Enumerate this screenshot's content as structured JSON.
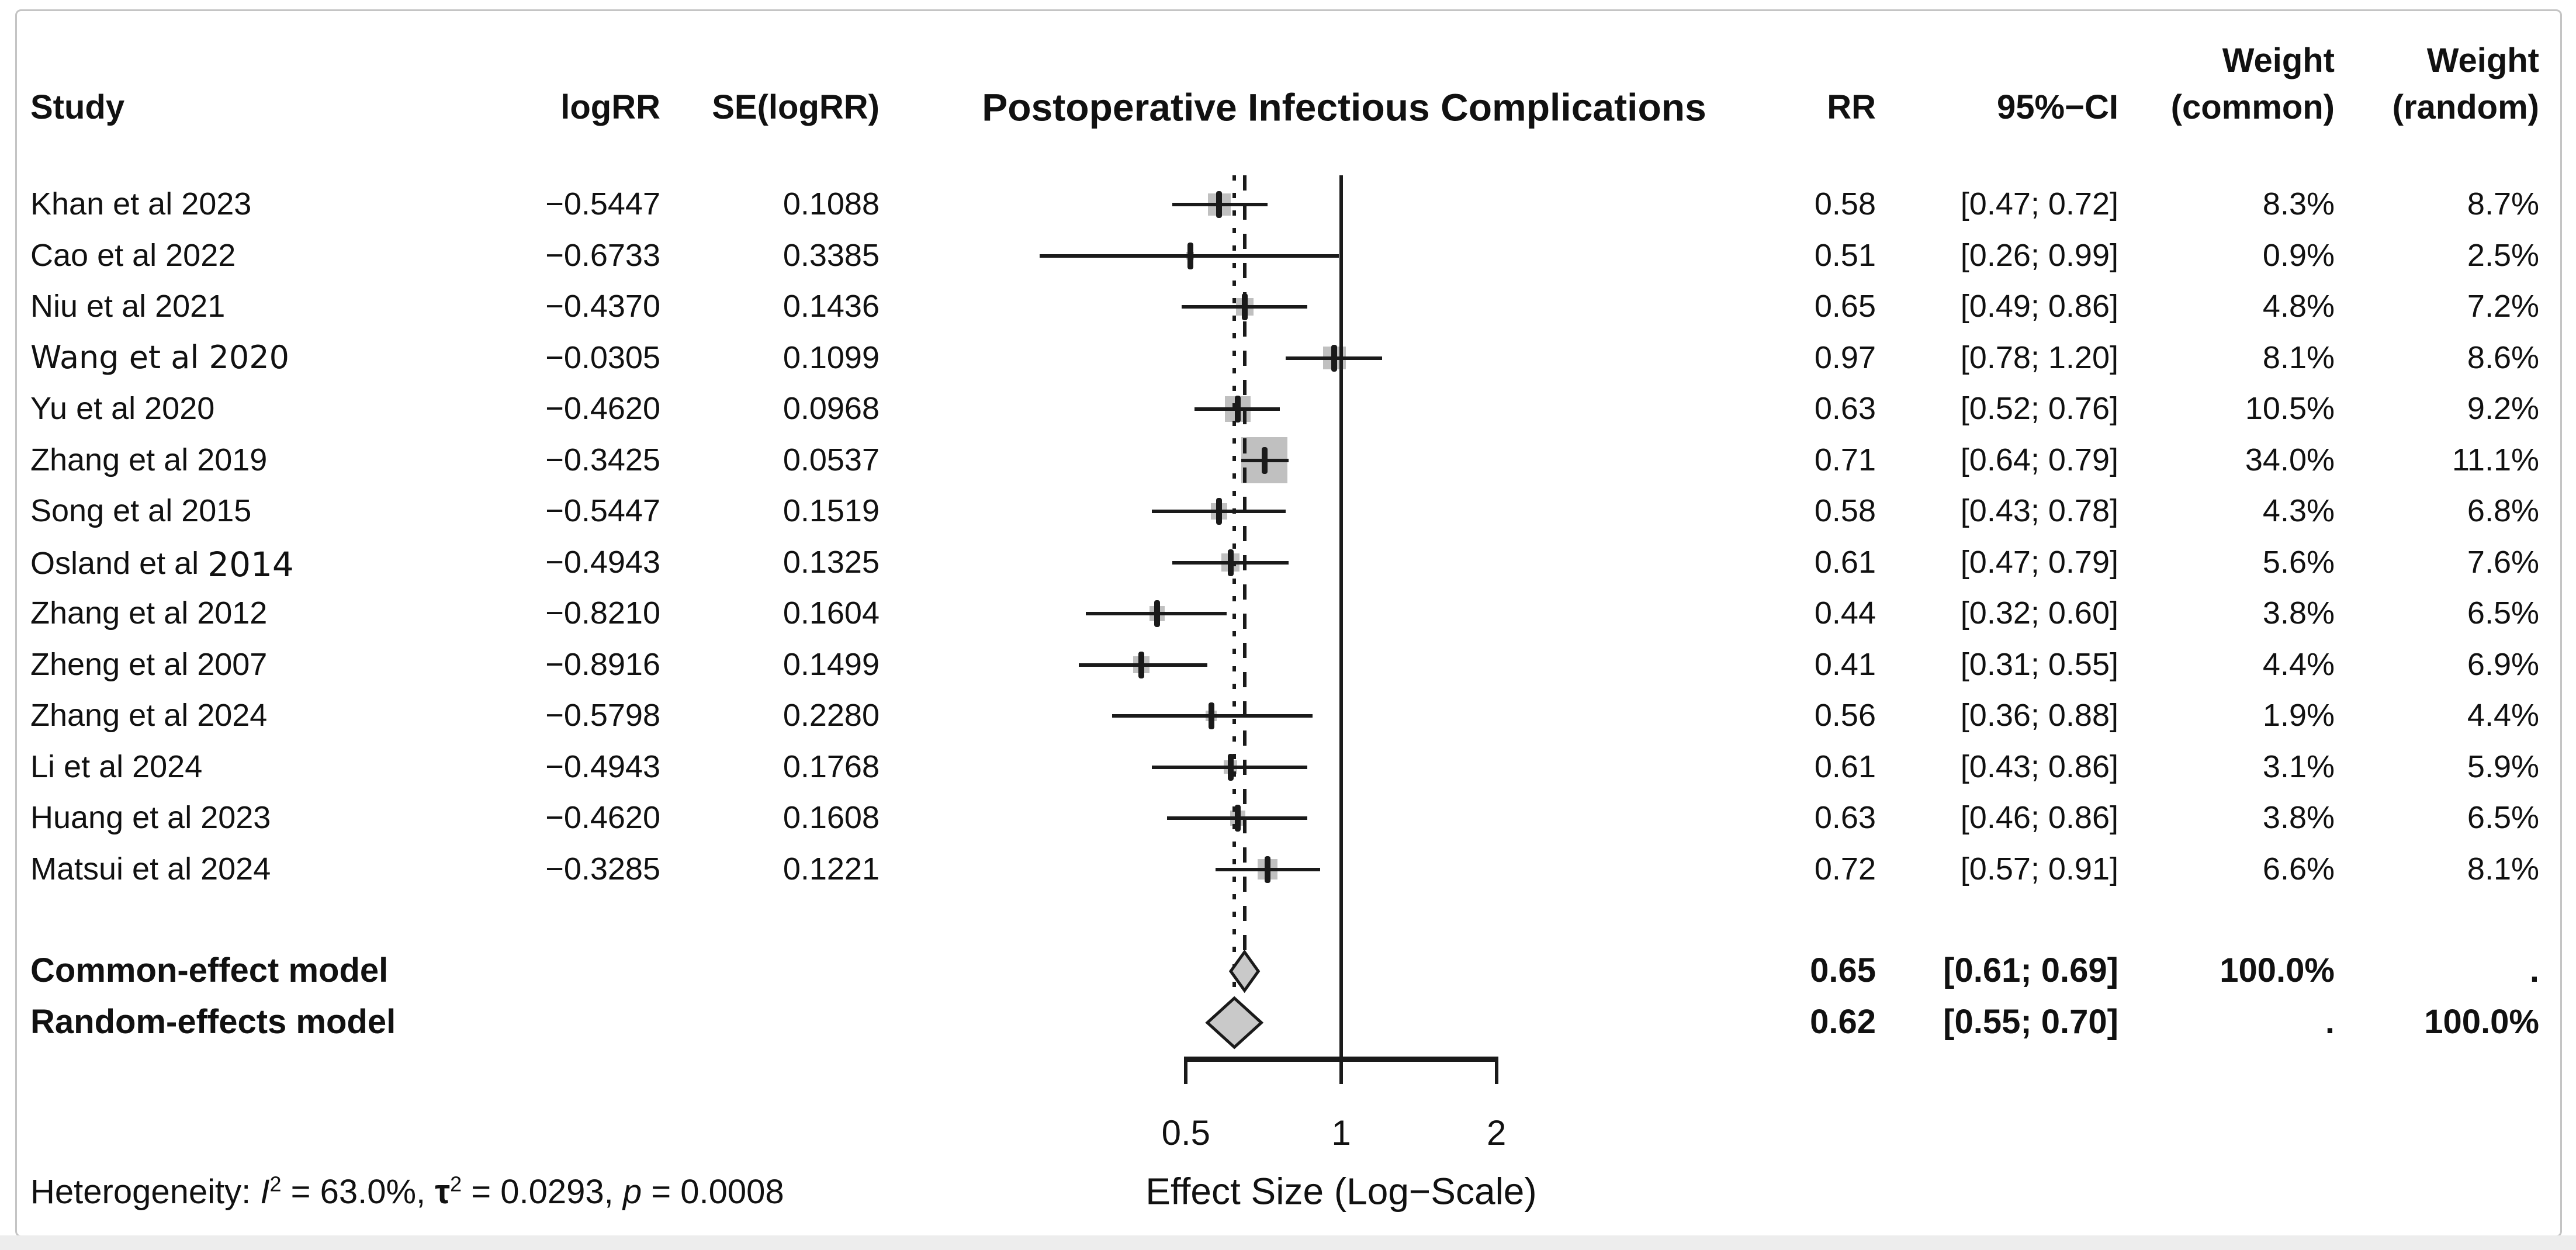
{
  "columns": {
    "study": "Study",
    "logrr": "logRR",
    "se": "SE(logRR)",
    "plot_title": "Postoperative Infectious Complications",
    "rr": "RR",
    "ci": "95%−CI",
    "weight": "Weight",
    "weight2": "Weight",
    "common": "(common)",
    "random": "(random)"
  },
  "chart_data": {
    "type": "scatter",
    "subtype": "forest-plot",
    "title": "Postoperative Infectious Complications",
    "xlabel": "Effect Size (Log−Scale)",
    "x_scale": "log",
    "x_ticks": [
      {
        "value": 0.5,
        "label": "0.5"
      },
      {
        "value": 1,
        "label": "1"
      },
      {
        "value": 2,
        "label": "2"
      }
    ],
    "null_line": 1,
    "studies": [
      {
        "name": "Khan et al 2023",
        "alt": "none",
        "logrr": "−0.5447",
        "se": "0.1088",
        "rr": 0.58,
        "lo": 0.47,
        "hi": 0.72,
        "rr_text": "0.58",
        "ci_text": "[0.47; 0.72]",
        "wc": 8.3,
        "wc_text": "8.3%",
        "wr_text": "8.7%"
      },
      {
        "name": "Cao et al 2022",
        "alt": "none",
        "logrr": "−0.6733",
        "se": "0.3385",
        "rr": 0.51,
        "lo": 0.26,
        "hi": 0.99,
        "rr_text": "0.51",
        "ci_text": "[0.26; 0.99]",
        "wc": 0.9,
        "wc_text": "0.9%",
        "wr_text": "2.5%"
      },
      {
        "name": "Niu et al 2021",
        "alt": "none",
        "logrr": "−0.4370",
        "se": "0.1436",
        "rr": 0.65,
        "lo": 0.49,
        "hi": 0.86,
        "rr_text": "0.65",
        "ci_text": "[0.49; 0.86]",
        "wc": 4.8,
        "wc_text": "4.8%",
        "wr_text": "7.2%"
      },
      {
        "name": "Wang et al 2020",
        "alt": "full",
        "logrr": "−0.0305",
        "se": "0.1099",
        "rr": 0.97,
        "lo": 0.78,
        "hi": 1.2,
        "rr_text": "0.97",
        "ci_text": "[0.78; 1.20]",
        "wc": 8.1,
        "wc_text": "8.1%",
        "wr_text": "8.6%"
      },
      {
        "name": "Yu et al 2020",
        "alt": "none",
        "logrr": "−0.4620",
        "se": "0.0968",
        "rr": 0.63,
        "lo": 0.52,
        "hi": 0.76,
        "rr_text": "0.63",
        "ci_text": "[0.52; 0.76]",
        "wc": 10.5,
        "wc_text": "10.5%",
        "wr_text": "9.2%"
      },
      {
        "name": "Zhang et al 2019",
        "alt": "none",
        "logrr": "−0.3425",
        "se": "0.0537",
        "rr": 0.71,
        "lo": 0.64,
        "hi": 0.79,
        "rr_text": "0.71",
        "ci_text": "[0.64; 0.79]",
        "wc": 34.0,
        "wc_text": "34.0%",
        "wr_text": "11.1%"
      },
      {
        "name": "Song et al 2015",
        "alt": "none",
        "logrr": "−0.5447",
        "se": "0.1519",
        "rr": 0.58,
        "lo": 0.43,
        "hi": 0.78,
        "rr_text": "0.58",
        "ci_text": "[0.43; 0.78]",
        "wc": 4.3,
        "wc_text": "4.3%",
        "wr_text": "6.8%"
      },
      {
        "name": "Osland et al 2014",
        "alt": "year",
        "name_head": "Osland et al ",
        "name_tail": "2014",
        "logrr": "−0.4943",
        "se": "0.1325",
        "rr": 0.61,
        "lo": 0.47,
        "hi": 0.79,
        "rr_text": "0.61",
        "ci_text": "[0.47; 0.79]",
        "wc": 5.6,
        "wc_text": "5.6%",
        "wr_text": "7.6%"
      },
      {
        "name": "Zhang et al 2012",
        "alt": "none",
        "logrr": "−0.8210",
        "se": "0.1604",
        "rr": 0.44,
        "lo": 0.32,
        "hi": 0.6,
        "rr_text": "0.44",
        "ci_text": "[0.32; 0.60]",
        "wc": 3.8,
        "wc_text": "3.8%",
        "wr_text": "6.5%"
      },
      {
        "name": "Zheng et al 2007",
        "alt": "none",
        "logrr": "−0.8916",
        "se": "0.1499",
        "rr": 0.41,
        "lo": 0.31,
        "hi": 0.55,
        "rr_text": "0.41",
        "ci_text": "[0.31; 0.55]",
        "wc": 4.4,
        "wc_text": "4.4%",
        "wr_text": "6.9%"
      },
      {
        "name": "Zhang et al 2024",
        "alt": "none",
        "logrr": "−0.5798",
        "se": "0.2280",
        "rr": 0.56,
        "lo": 0.36,
        "hi": 0.88,
        "rr_text": "0.56",
        "ci_text": "[0.36; 0.88]",
        "wc": 1.9,
        "wc_text": "1.9%",
        "wr_text": "4.4%"
      },
      {
        "name": "Li et al 2024",
        "alt": "none",
        "logrr": "−0.4943",
        "se": "0.1768",
        "rr": 0.61,
        "lo": 0.43,
        "hi": 0.86,
        "rr_text": "0.61",
        "ci_text": "[0.43; 0.86]",
        "wc": 3.1,
        "wc_text": "3.1%",
        "wr_text": "5.9%"
      },
      {
        "name": "Huang et al 2023",
        "alt": "none",
        "logrr": "−0.4620",
        "se": "0.1608",
        "rr": 0.63,
        "lo": 0.46,
        "hi": 0.86,
        "rr_text": "0.63",
        "ci_text": "[0.46; 0.86]",
        "wc": 3.8,
        "wc_text": "3.8%",
        "wr_text": "6.5%"
      },
      {
        "name": "Matsui et al 2024",
        "alt": "none",
        "logrr": "−0.3285",
        "se": "0.1221",
        "rr": 0.72,
        "lo": 0.57,
        "hi": 0.91,
        "rr_text": "0.72",
        "ci_text": "[0.57; 0.91]",
        "wc": 6.6,
        "wc_text": "6.6%",
        "wr_text": "8.1%"
      }
    ],
    "summaries": [
      {
        "name": "Common-effect model",
        "rr": 0.65,
        "lo": 0.61,
        "hi": 0.69,
        "rr_text": "0.65",
        "ci_text": "[0.61; 0.69]",
        "wc_text": "100.0%",
        "wr_text": ".",
        "line": "dashed",
        "half_height": 33
      },
      {
        "name": "Random-effects model",
        "rr": 0.62,
        "lo": 0.55,
        "hi": 0.7,
        "rr_text": "0.62",
        "ci_text": "[0.55; 0.70]",
        "wc_text": ".",
        "wr_text": "100.0%",
        "line": "dotted",
        "half_height": 42
      }
    ],
    "heterogeneity": {
      "p1": "Heterogeneity: ",
      "i_sym": "I",
      "i_sup": "2",
      "p2": " = 63.0%, ",
      "tau_sym": "τ",
      "tau_sup": "2",
      "p3": " = 0.0293, ",
      "p_sym": "p",
      "p4": " = 0.0008"
    }
  }
}
